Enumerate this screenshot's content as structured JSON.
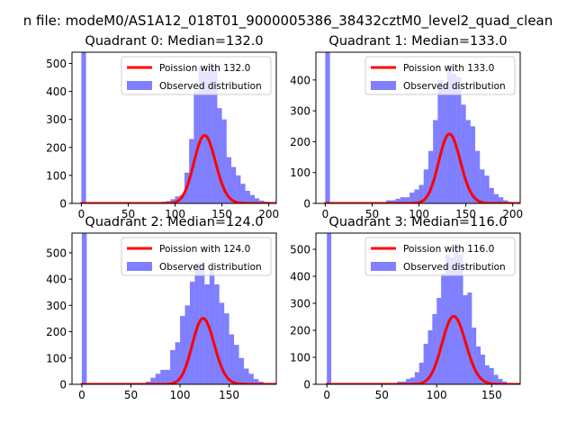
{
  "figure": {
    "suptitle": "n file: modeM0/AS1A12_018T01_9000005386_38432cztM0_level2_quad_clean"
  },
  "colors": {
    "histogram": "#0000ff",
    "histogram_alpha": 0.5,
    "poisson": "#ff0000"
  },
  "chart_data": [
    {
      "type": "bar",
      "title": "Quadrant 0: Median=132.0",
      "xlim": [
        -10,
        208
      ],
      "ylim": [
        0,
        540
      ],
      "xticks": [
        0,
        50,
        100,
        150,
        200
      ],
      "yticks": [
        0,
        100,
        200,
        300,
        400,
        500
      ],
      "legend": {
        "position": "top-right",
        "entries": [
          "Poission with 132.0",
          "Observed distribution"
        ]
      },
      "poisson_lambda": 132.0,
      "poisson_scale": 7000,
      "bin_width": 5,
      "observed_distribution": {
        "bin_left_edges": [
          0,
          5,
          10,
          15,
          20,
          25,
          30,
          35,
          40,
          45,
          50,
          55,
          60,
          65,
          70,
          75,
          80,
          85,
          90,
          95,
          100,
          105,
          110,
          115,
          120,
          125,
          130,
          135,
          140,
          145,
          150,
          155,
          160,
          165,
          170,
          175,
          180,
          185,
          190,
          195
        ],
        "counts": [
          540,
          0,
          0,
          0,
          0,
          0,
          0,
          0,
          0,
          0,
          0,
          0,
          0,
          0,
          2,
          3,
          4,
          6,
          8,
          15,
          25,
          30,
          110,
          230,
          400,
          490,
          470,
          500,
          480,
          340,
          300,
          165,
          130,
          100,
          70,
          45,
          30,
          18,
          10,
          6
        ]
      }
    },
    {
      "type": "bar",
      "title": "Quadrant 1: Median=133.0",
      "xlim": [
        -10,
        208
      ],
      "ylim": [
        0,
        490
      ],
      "xticks": [
        0,
        50,
        100,
        150,
        200
      ],
      "yticks": [
        0,
        100,
        200,
        300,
        400
      ],
      "legend": {
        "position": "top-right",
        "entries": [
          "Poission with 133.0",
          "Observed distribution"
        ]
      },
      "poisson_lambda": 133.0,
      "poisson_scale": 6500,
      "bin_width": 5,
      "observed_distribution": {
        "bin_left_edges": [
          0,
          5,
          10,
          15,
          20,
          25,
          30,
          35,
          40,
          45,
          50,
          55,
          60,
          65,
          70,
          75,
          80,
          85,
          90,
          95,
          100,
          105,
          110,
          115,
          120,
          125,
          130,
          135,
          140,
          145,
          150,
          155,
          160,
          165,
          170,
          175,
          180,
          185,
          190,
          195
        ],
        "counts": [
          490,
          0,
          0,
          0,
          0,
          0,
          0,
          0,
          0,
          0,
          0,
          0,
          0,
          10,
          10,
          15,
          20,
          20,
          35,
          45,
          60,
          110,
          170,
          270,
          400,
          390,
          450,
          420,
          410,
          320,
          270,
          250,
          170,
          110,
          90,
          50,
          30,
          20,
          10,
          5
        ]
      }
    },
    {
      "type": "bar",
      "title": "Quadrant 2: Median=124.0",
      "xlim": [
        -10,
        198
      ],
      "ylim": [
        0,
        575
      ],
      "xticks": [
        0,
        50,
        100,
        150
      ],
      "yticks": [
        0,
        100,
        200,
        300,
        400,
        500
      ],
      "legend": {
        "position": "top-right",
        "entries": [
          "Poission with 124.0",
          "Observed distribution"
        ]
      },
      "poisson_lambda": 124.0,
      "poisson_scale": 7000,
      "bin_width": 5,
      "observed_distribution": {
        "bin_left_edges": [
          0,
          5,
          10,
          15,
          20,
          25,
          30,
          35,
          40,
          45,
          50,
          55,
          60,
          65,
          70,
          75,
          80,
          85,
          90,
          95,
          100,
          105,
          110,
          115,
          120,
          125,
          130,
          135,
          140,
          145,
          150,
          155,
          160,
          165,
          170,
          175,
          180,
          185
        ],
        "counts": [
          575,
          0,
          0,
          0,
          0,
          0,
          0,
          0,
          0,
          0,
          0,
          0,
          5,
          10,
          25,
          40,
          55,
          55,
          130,
          160,
          260,
          300,
          390,
          460,
          460,
          380,
          440,
          380,
          310,
          270,
          190,
          150,
          100,
          60,
          40,
          20,
          10,
          5
        ]
      }
    },
    {
      "type": "bar",
      "title": "Quadrant 3: Median=116.0",
      "xlim": [
        -10,
        176
      ],
      "ylim": [
        0,
        560
      ],
      "xticks": [
        0,
        50,
        100,
        150
      ],
      "yticks": [
        0,
        100,
        200,
        300,
        400,
        500
      ],
      "legend": {
        "position": "top-right",
        "entries": [
          "Poission with 116.0",
          "Observed distribution"
        ]
      },
      "poisson_lambda": 116.0,
      "poisson_scale": 6800,
      "bin_width": 4,
      "observed_distribution": {
        "bin_left_edges": [
          0,
          4,
          8,
          12,
          16,
          20,
          24,
          28,
          32,
          36,
          40,
          44,
          48,
          52,
          56,
          60,
          64,
          68,
          72,
          76,
          80,
          84,
          88,
          92,
          96,
          100,
          104,
          108,
          112,
          116,
          120,
          124,
          128,
          132,
          136,
          140,
          144,
          148,
          152,
          156,
          160,
          164
        ],
        "counts": [
          560,
          0,
          0,
          0,
          0,
          0,
          0,
          0,
          0,
          0,
          0,
          0,
          0,
          0,
          0,
          5,
          10,
          10,
          20,
          25,
          45,
          80,
          150,
          200,
          260,
          320,
          410,
          480,
          470,
          520,
          480,
          330,
          340,
          210,
          140,
          110,
          70,
          60,
          35,
          20,
          10,
          5
        ]
      }
    }
  ]
}
